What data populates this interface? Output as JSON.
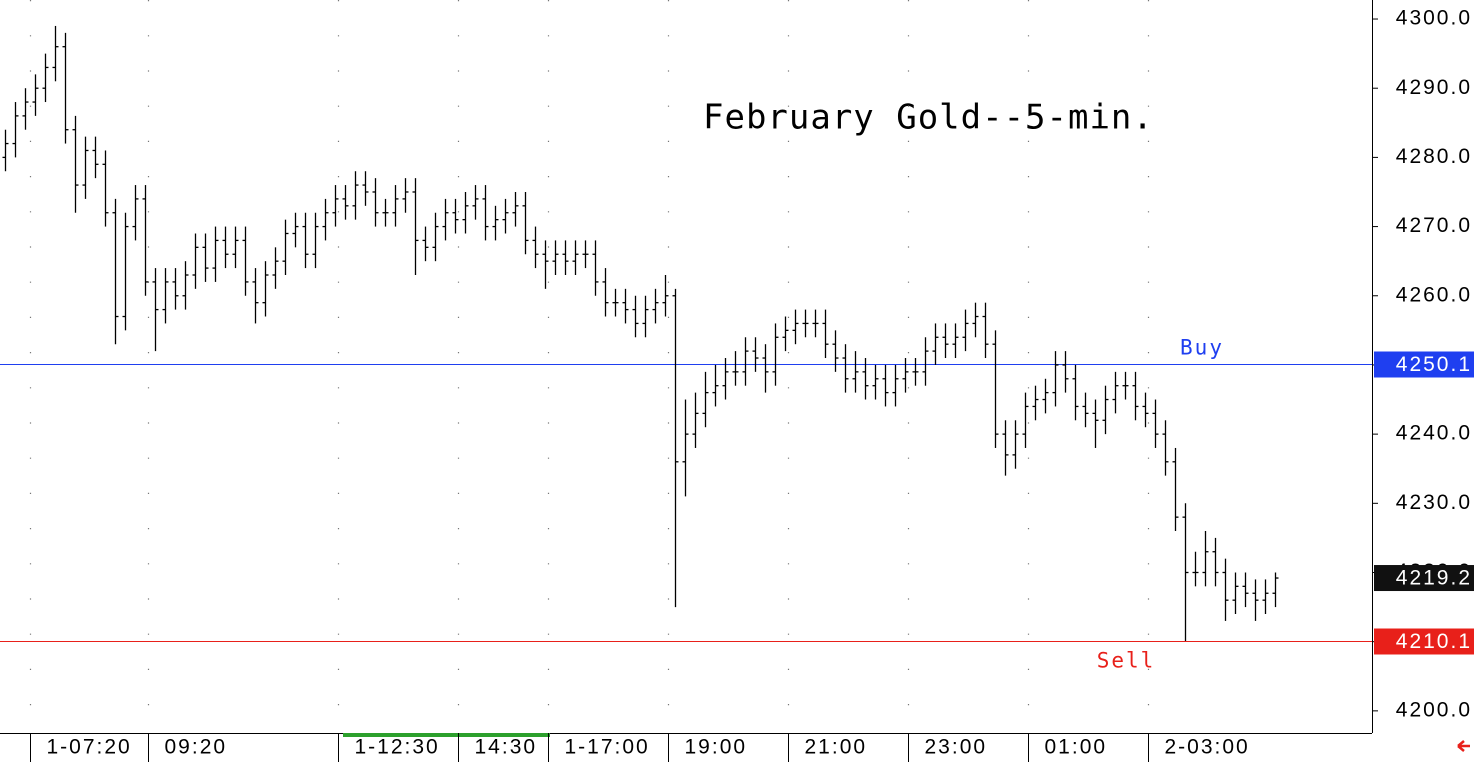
{
  "chart_data": {
    "type": "ohlc",
    "title": "February Gold--5-min.",
    "color": "#000000",
    "ylim": [
      4196.8,
      4302.75
    ],
    "yticks": [
      {
        "value": 4200,
        "label": "4200.0"
      },
      {
        "value": 4210,
        "label": "4210.0"
      },
      {
        "value": 4220,
        "label": "4220.0"
      },
      {
        "value": 4230,
        "label": "4230.0"
      },
      {
        "value": 4240,
        "label": "4240.0"
      },
      {
        "value": 4250,
        "label": "4250.0"
      },
      {
        "value": 4260,
        "label": "4260.0"
      },
      {
        "value": 4270,
        "label": "4270.0"
      },
      {
        "value": 4280,
        "label": "4280.0"
      },
      {
        "value": 4290,
        "label": "4290.0"
      },
      {
        "value": 4300,
        "label": "4300.0"
      }
    ],
    "xlim": [
      -0.5,
      136.7
    ],
    "xticks": [
      {
        "value": 2.5,
        "label": "1-07:20"
      },
      {
        "value": 14.3,
        "label": "09:20"
      },
      {
        "value": 33.3,
        "label": "1-12:30"
      },
      {
        "value": 45.3,
        "label": "14:30"
      },
      {
        "value": 54.3,
        "label": "1-17:00"
      },
      {
        "value": 66.3,
        "label": "19:00"
      },
      {
        "value": 78.3,
        "label": "21:00"
      },
      {
        "value": 90.3,
        "label": "23:00"
      },
      {
        "value": 102.3,
        "label": "01:00"
      },
      {
        "value": 114.3,
        "label": "2-03:00"
      }
    ],
    "grid": true,
    "open": [
      4280,
      4282,
      4286,
      4288,
      4290,
      4293,
      4296,
      4284,
      4276,
      4281,
      4279,
      4272,
      4257,
      4270,
      4274,
      4262,
      4258,
      4262,
      4260,
      4263,
      4267,
      4264,
      4268,
      4266,
      4268,
      4262,
      4259,
      4263,
      4265,
      4269,
      4270,
      4266,
      4270,
      4272,
      4274,
      4273,
      4276,
      4275,
      4272,
      4272,
      4274,
      4275,
      4268,
      4267,
      4270,
      4272,
      4271,
      4273,
      4274,
      4270,
      4271,
      4272,
      4273,
      4268,
      4266,
      4265,
      4266,
      4265,
      4266,
      4266,
      4262,
      4259,
      4259,
      4258,
      4256,
      4258,
      4259,
      4260,
      4236,
      4240,
      4243,
      4246,
      4247,
      4249,
      4249,
      4252,
      4251,
      4249,
      4254,
      4255,
      4256,
      4256,
      4256,
      4253,
      4251,
      4248,
      4249,
      4247,
      4248,
      4246,
      4248,
      4249,
      4249,
      4252,
      4254,
      4253,
      4254,
      4256,
      4257,
      4253,
      4240,
      4237,
      4240,
      4244,
      4245,
      4246,
      4250,
      4248,
      4244,
      4243,
      4242,
      4245,
      4247,
      4247,
      4244,
      4243,
      4240,
      4236,
      4228,
      4220,
      4220,
      4223,
      4220,
      4216,
      4218,
      4217,
      4216,
      4217
    ],
    "high": [
      4284,
      4288,
      4290,
      4292,
      4295,
      4299,
      4298,
      4286,
      4283,
      4283,
      4281,
      4274,
      4272,
      4276,
      4276,
      4264,
      4264,
      4264,
      4265,
      4269,
      4269,
      4270,
      4270,
      4270,
      4270,
      4264,
      4265,
      4267,
      4271,
      4272,
      4272,
      4272,
      4274,
      4276,
      4276,
      4278,
      4278,
      4277,
      4274,
      4276,
      4277,
      4277,
      4270,
      4272,
      4274,
      4274,
      4275,
      4276,
      4276,
      4273,
      4274,
      4275,
      4275,
      4270,
      4268,
      4268,
      4268,
      4268,
      4268,
      4268,
      4264,
      4261,
      4261,
      4260,
      4260,
      4261,
      4263,
      4261,
      4245,
      4246,
      4249,
      4250,
      4251,
      4252,
      4254,
      4254,
      4253,
      4256,
      4257,
      4258,
      4258,
      4258,
      4258,
      4255,
      4253,
      4252,
      4251,
      4250,
      4250,
      4250,
      4251,
      4251,
      4254,
      4256,
      4256,
      4256,
      4258,
      4259,
      4259,
      4255,
      4242,
      4242,
      4246,
      4247,
      4248,
      4252,
      4252,
      4250,
      4246,
      4245,
      4247,
      4249,
      4249,
      4249,
      4246,
      4245,
      4242,
      4238,
      4230,
      4223,
      4226,
      4225,
      4222,
      4220,
      4220,
      4219,
      4219,
      4220
    ],
    "low": [
      4278,
      4280,
      4284,
      4286,
      4288,
      4291,
      4282,
      4272,
      4274,
      4277,
      4270,
      4253,
      4255,
      4268,
      4260,
      4252,
      4256,
      4258,
      4258,
      4261,
      4262,
      4262,
      4264,
      4264,
      4260,
      4256,
      4257,
      4261,
      4263,
      4267,
      4264,
      4264,
      4268,
      4270,
      4271,
      4271,
      4273,
      4270,
      4270,
      4270,
      4272,
      4263,
      4265,
      4265,
      4268,
      4269,
      4269,
      4271,
      4268,
      4268,
      4269,
      4270,
      4266,
      4264,
      4261,
      4263,
      4263,
      4263,
      4264,
      4260,
      4257,
      4257,
      4256,
      4254,
      4254,
      4256,
      4257,
      4215,
      4231,
      4238,
      4241,
      4244,
      4245,
      4247,
      4247,
      4249,
      4246,
      4247,
      4252,
      4253,
      4254,
      4254,
      4251,
      4249,
      4246,
      4246,
      4245,
      4245,
      4244,
      4244,
      4246,
      4247,
      4247,
      4250,
      4251,
      4251,
      4252,
      4254,
      4251,
      4238,
      4234,
      4235,
      4238,
      4242,
      4243,
      4244,
      4246,
      4242,
      4241,
      4238,
      4240,
      4243,
      4245,
      4242,
      4241,
      4238,
      4234,
      4226,
      4210.1,
      4218,
      4218,
      4218,
      4213,
      4214,
      4215,
      4213,
      4214,
      4215
    ],
    "close": [
      4282,
      4286,
      4288,
      4290,
      4293,
      4296,
      4284,
      4276,
      4281,
      4279,
      4272,
      4257,
      4270,
      4274,
      4262,
      4258,
      4262,
      4260,
      4263,
      4267,
      4264,
      4268,
      4266,
      4268,
      4262,
      4259,
      4263,
      4265,
      4269,
      4270,
      4266,
      4270,
      4272,
      4274,
      4273,
      4276,
      4275,
      4272,
      4272,
      4274,
      4275,
      4268,
      4267,
      4270,
      4272,
      4271,
      4273,
      4274,
      4270,
      4271,
      4272,
      4273,
      4268,
      4266,
      4265,
      4266,
      4265,
      4266,
      4266,
      4262,
      4259,
      4259,
      4258,
      4256,
      4258,
      4259,
      4260,
      4236,
      4240,
      4243,
      4246,
      4247,
      4249,
      4249,
      4252,
      4251,
      4249,
      4254,
      4255,
      4256,
      4256,
      4256,
      4253,
      4251,
      4248,
      4249,
      4247,
      4248,
      4246,
      4248,
      4249,
      4249,
      4252,
      4254,
      4253,
      4254,
      4256,
      4257,
      4253,
      4240,
      4237,
      4240,
      4244,
      4245,
      4246,
      4250,
      4248,
      4244,
      4243,
      4242,
      4245,
      4247,
      4247,
      4244,
      4243,
      4240,
      4236,
      4228,
      4220,
      4220,
      4223,
      4220,
      4216,
      4218,
      4217,
      4216,
      4217,
      4219.2
    ],
    "last": {
      "value": 4219.2,
      "value_label": "4219.2",
      "color": "#111111"
    },
    "levels": [
      {
        "name": "Buy",
        "value": 4250.1,
        "value_label": "4250.1",
        "color": "#1f3ff0"
      },
      {
        "name": "Sell",
        "value": 4210.1,
        "value_label": "4210.1",
        "color": "#e8201a"
      }
    ]
  }
}
